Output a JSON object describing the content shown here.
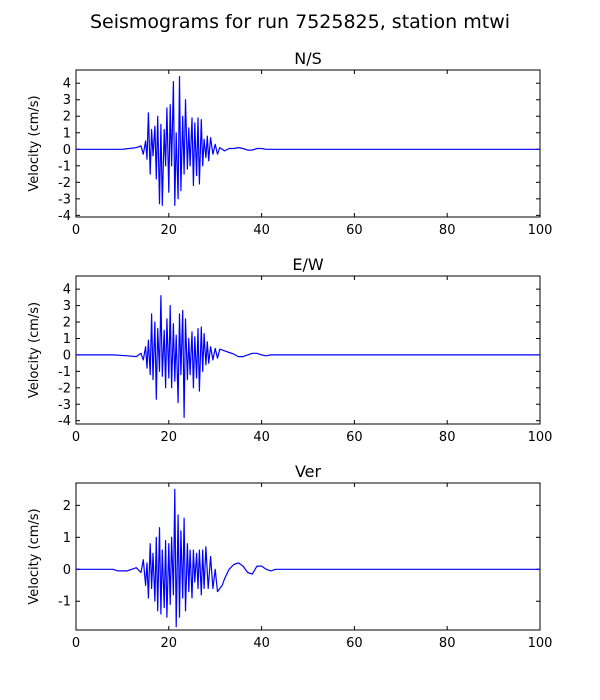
{
  "figure": {
    "title": "Seismograms for run 7525825, station mtwi",
    "trace_color": "#0000ff"
  },
  "chart_data": [
    {
      "type": "line",
      "title": "N/S",
      "xlabel": "",
      "ylabel": "Velocity (cm/s)",
      "xlim": [
        0,
        100
      ],
      "ylim": [
        -4.1,
        4.8
      ],
      "xticks": [
        0,
        20,
        40,
        60,
        80,
        100
      ],
      "yticks": [
        -4,
        -3,
        -2,
        -1,
        0,
        1,
        2,
        3,
        4
      ],
      "grid": false,
      "series": [
        {
          "x": [
            0,
            10,
            13,
            14,
            14.5,
            15,
            15.3,
            15.6,
            16,
            16.3,
            16.6,
            17,
            17.3,
            17.6,
            18,
            18.3,
            18.6,
            19,
            19.3,
            19.6,
            20,
            20.3,
            20.6,
            21,
            21.3,
            21.6,
            22,
            22.3,
            22.6,
            23,
            23.3,
            23.6,
            24,
            24.3,
            24.6,
            25,
            25.3,
            25.6,
            26,
            26.3,
            26.6,
            27,
            27.3,
            27.6,
            28,
            28.3,
            28.6,
            29,
            29.5,
            30,
            30.5,
            31,
            32,
            33,
            34,
            35,
            36,
            37,
            38,
            39,
            40,
            41,
            42,
            44,
            46,
            50,
            60,
            80,
            100
          ],
          "y": [
            0,
            0,
            0.1,
            0.2,
            -0.3,
            0.5,
            -0.6,
            2.2,
            -1.5,
            1.2,
            -0.4,
            1.4,
            -1.8,
            2.0,
            -3.3,
            1.5,
            -3.4,
            1.2,
            -1.0,
            2.5,
            -2.6,
            2.7,
            -1.0,
            4.1,
            -3.4,
            1.0,
            -3.0,
            4.4,
            -2.5,
            2.0,
            -1.5,
            3.0,
            -1.2,
            1.3,
            -1.0,
            1.9,
            -2.2,
            1.6,
            -1.6,
            1.9,
            -2.1,
            1.8,
            -1.0,
            0.6,
            -0.5,
            0.8,
            -0.7,
            0.7,
            -0.3,
            0.3,
            -0.3,
            0.1,
            -0.1,
            0.05,
            0.05,
            0.1,
            0.05,
            -0.05,
            -0.05,
            0.05,
            0.05,
            0,
            0,
            0,
            0,
            0,
            0,
            0,
            0
          ]
        }
      ]
    },
    {
      "type": "line",
      "title": "E/W",
      "xlabel": "",
      "ylabel": "Velocity (cm/s)",
      "xlim": [
        0,
        100
      ],
      "ylim": [
        -4.2,
        4.8
      ],
      "xticks": [
        0,
        20,
        40,
        60,
        80,
        100
      ],
      "yticks": [
        -4,
        -3,
        -2,
        -1,
        0,
        1,
        2,
        3,
        4
      ],
      "grid": false,
      "series": [
        {
          "x": [
            0,
            8,
            11,
            13,
            14,
            14.5,
            15,
            15.3,
            15.6,
            16,
            16.3,
            16.6,
            17,
            17.3,
            17.6,
            18,
            18.3,
            18.6,
            19,
            19.3,
            19.6,
            20,
            20.3,
            20.6,
            21,
            21.3,
            21.6,
            22,
            22.3,
            22.6,
            23,
            23.3,
            23.6,
            24,
            24.3,
            24.6,
            25,
            25.3,
            25.6,
            26,
            26.3,
            26.6,
            27,
            27.3,
            27.6,
            28,
            28.3,
            28.6,
            29,
            29.5,
            30,
            30.5,
            31,
            32,
            33,
            34,
            35,
            36,
            37,
            38,
            39,
            40,
            41,
            42,
            44,
            50,
            60,
            80,
            100
          ],
          "y": [
            0,
            0,
            -0.05,
            -0.1,
            0.1,
            -0.3,
            0.5,
            -0.8,
            0.9,
            -1.2,
            2.5,
            -1.5,
            2.0,
            -2.7,
            1.6,
            -1.0,
            3.6,
            -1.3,
            1.5,
            -2.0,
            2.2,
            -1.4,
            3.0,
            -2.0,
            1.9,
            -1.6,
            1.2,
            -2.9,
            2.5,
            -1.2,
            2.7,
            -3.8,
            2.2,
            -1.5,
            1.0,
            -1.2,
            1.4,
            -2.0,
            1.1,
            -1.4,
            1.6,
            -2.2,
            1.7,
            -1.0,
            1.3,
            -0.6,
            0.8,
            -0.5,
            0.5,
            -0.3,
            0.4,
            -0.2,
            0.35,
            0.25,
            0.15,
            0.05,
            -0.1,
            -0.1,
            0,
            0.1,
            0.1,
            0,
            -0.05,
            0,
            0,
            0,
            0,
            0,
            0
          ]
        }
      ]
    },
    {
      "type": "line",
      "title": "Ver",
      "xlabel": "",
      "ylabel": "Velocity (cm/s)",
      "xlim": [
        0,
        100
      ],
      "ylim": [
        -1.9,
        2.7
      ],
      "xticks": [
        0,
        20,
        40,
        60,
        80,
        100
      ],
      "yticks": [
        -1,
        0,
        1,
        2
      ],
      "grid": false,
      "series": [
        {
          "x": [
            0,
            8,
            9,
            11,
            12,
            13,
            14,
            14.5,
            15,
            15.3,
            15.6,
            16,
            16.3,
            16.6,
            17,
            17.3,
            17.6,
            18,
            18.3,
            18.6,
            19,
            19.3,
            19.6,
            20,
            20.3,
            20.6,
            21,
            21.3,
            21.6,
            22,
            22.3,
            22.6,
            23,
            23.3,
            23.6,
            24,
            24.3,
            24.6,
            25,
            25.3,
            25.6,
            26,
            26.3,
            26.6,
            27,
            27.3,
            27.6,
            28,
            28.5,
            29,
            29.5,
            30,
            30.5,
            31,
            31.5,
            32,
            33,
            34,
            35,
            36,
            37,
            38,
            39,
            40,
            41,
            42,
            43,
            44,
            46,
            50,
            60,
            80,
            100
          ],
          "y": [
            0,
            0,
            -0.05,
            -0.05,
            0,
            0.05,
            -0.1,
            0.3,
            -0.5,
            0.2,
            -0.9,
            0.8,
            -0.6,
            0.5,
            -1.0,
            1.0,
            -1.3,
            1.3,
            -1.4,
            0.6,
            -1.2,
            0.9,
            -1.5,
            0.8,
            -1.1,
            1.0,
            -0.8,
            2.5,
            -1.8,
            1.7,
            -1.5,
            1.2,
            -0.9,
            1.6,
            -1.3,
            0.8,
            -0.7,
            0.6,
            -0.9,
            0.6,
            -0.4,
            0.5,
            -0.6,
            0.6,
            -0.8,
            0.6,
            -0.6,
            0.7,
            -0.6,
            0.4,
            -0.6,
            0.0,
            -0.7,
            -0.6,
            -0.5,
            -0.3,
            0.0,
            0.15,
            0.2,
            0.1,
            -0.1,
            -0.15,
            0.1,
            0.1,
            0.0,
            -0.05,
            0.0,
            0.0,
            0.0,
            0.0,
            0.0,
            0.0,
            0.0
          ]
        }
      ]
    }
  ]
}
